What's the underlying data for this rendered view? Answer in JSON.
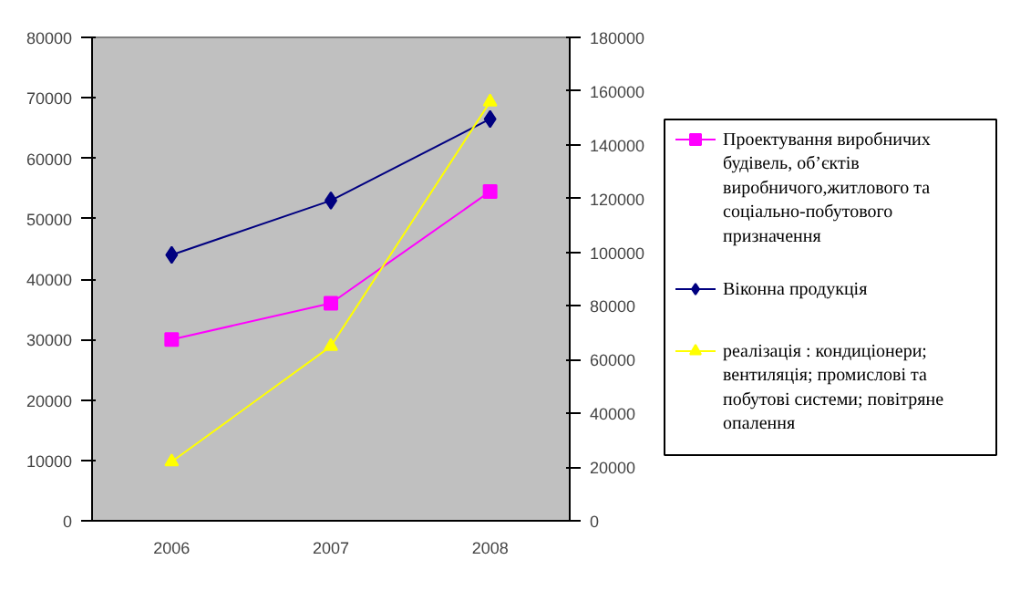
{
  "chart_data": {
    "type": "line",
    "categories": [
      "2006",
      "2007",
      "2008"
    ],
    "series": [
      {
        "name": "Проектування виробничих будівель, об’єктів виробничого,житлового та соціально-побутового призначення",
        "color": "#ff00ff",
        "marker": "square",
        "values": [
          30000,
          36000,
          54500
        ]
      },
      {
        "name": "Віконна продукція",
        "color": "#000080",
        "marker": "diamond",
        "values": [
          44000,
          53000,
          66500
        ]
      },
      {
        "name": "реалізація : кондиціонери; вентиляція; промислові та побутові системи; повітряне опалення",
        "color": "#ffff00",
        "marker": "triangle",
        "axis": "y2",
        "values": [
          22000,
          65000,
          156000
        ]
      }
    ],
    "ylim": [
      0,
      80000
    ],
    "yticks": [
      0,
      10000,
      20000,
      30000,
      40000,
      50000,
      60000,
      70000,
      80000
    ],
    "y2lim": [
      0,
      180000
    ],
    "y2ticks": [
      0,
      20000,
      40000,
      60000,
      80000,
      100000,
      120000,
      140000,
      160000,
      180000
    ],
    "grid": false,
    "legend": "right"
  }
}
